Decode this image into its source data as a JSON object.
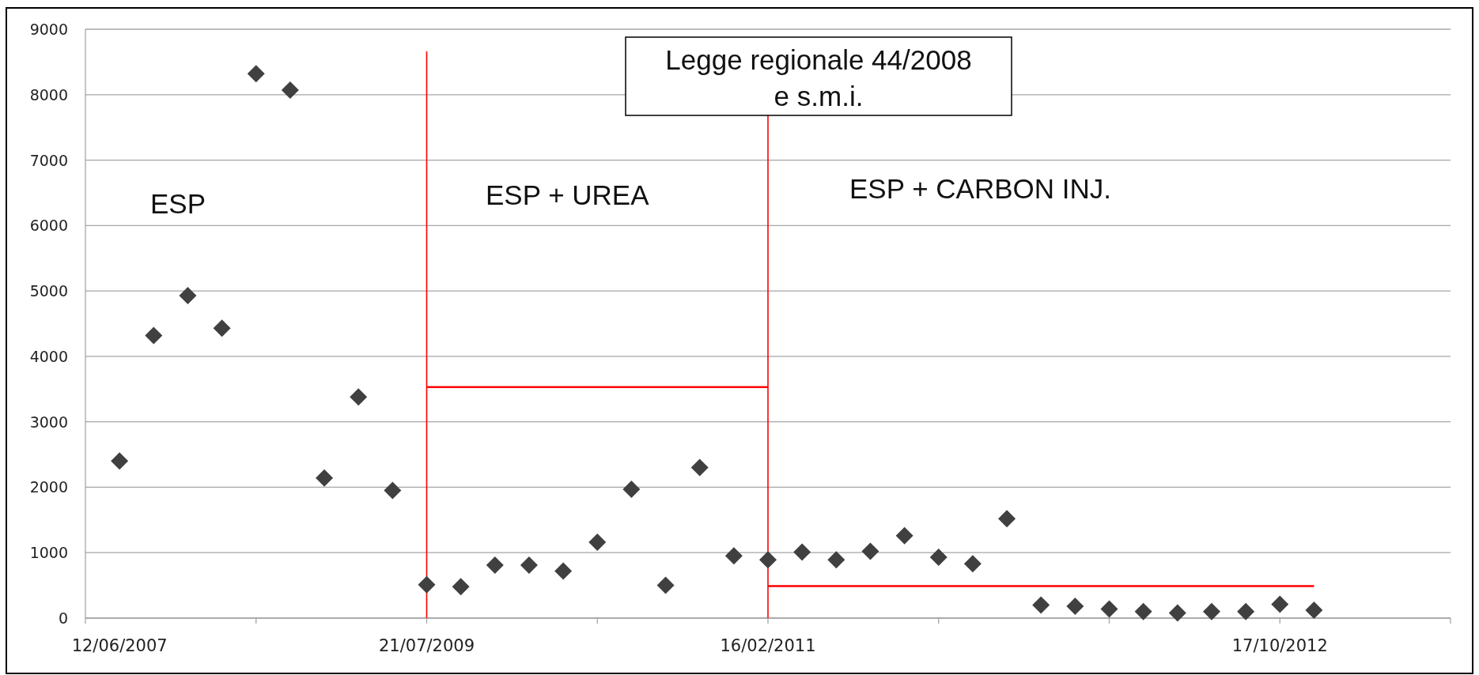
{
  "chart_data": {
    "type": "scatter",
    "grid": "y",
    "categories": [
      "12/06/2007",
      null,
      null,
      null,
      null,
      null,
      null,
      null,
      null,
      "21/07/2009",
      null,
      null,
      null,
      null,
      null,
      null,
      null,
      null,
      null,
      "16/02/2011",
      null,
      null,
      null,
      null,
      null,
      null,
      null,
      null,
      null,
      null,
      null,
      null,
      null,
      null,
      "17/10/2012",
      null
    ],
    "ylim": [
      0,
      9000
    ],
    "yticks": [
      0,
      1000,
      2000,
      3000,
      4000,
      5000,
      6000,
      7000,
      8000,
      9000
    ],
    "series": [
      {
        "color": "#404040",
        "marker": "diamond",
        "values": [
          2400,
          4320,
          4930,
          4430,
          8320,
          8070,
          2140,
          3380,
          1950,
          510,
          480,
          810,
          810,
          720,
          1160,
          1970,
          500,
          2300,
          950,
          890,
          1010,
          890,
          1020,
          1260,
          930,
          830,
          1520,
          200,
          180,
          140,
          100,
          80,
          100,
          100,
          210,
          120
        ]
      },
      {
        "type": "line",
        "marker": "none",
        "color": "#ff0000",
        "values": [
          null,
          null,
          null,
          null,
          null,
          null,
          null,
          null,
          null,
          3530,
          3530,
          3530,
          3530,
          3530,
          3530,
          3530,
          3530,
          3530,
          3530,
          3530,
          null,
          null,
          null,
          null,
          null,
          null,
          null,
          null,
          null,
          null,
          null,
          null,
          null,
          null,
          null,
          null
        ]
      },
      {
        "type": "line",
        "marker": "none",
        "color": "#ff0000",
        "values": [
          null,
          null,
          null,
          null,
          null,
          null,
          null,
          null,
          null,
          null,
          null,
          null,
          null,
          null,
          null,
          null,
          null,
          null,
          null,
          490,
          490,
          490,
          490,
          490,
          490,
          490,
          490,
          490,
          490,
          490,
          490,
          490,
          490,
          490,
          490,
          490
        ]
      }
    ],
    "ref_lines": [
      {
        "axis": "x",
        "value": "21/07/2009",
        "color": "#ff0000"
      },
      {
        "axis": "x",
        "value": "16/02/2011",
        "color": "#ff0000"
      }
    ],
    "annotations": [
      "ESP",
      "ESP + UREA",
      "ESP + CARBON INJ.",
      "Legge regionale 44/2008\ne s.m.i."
    ]
  }
}
